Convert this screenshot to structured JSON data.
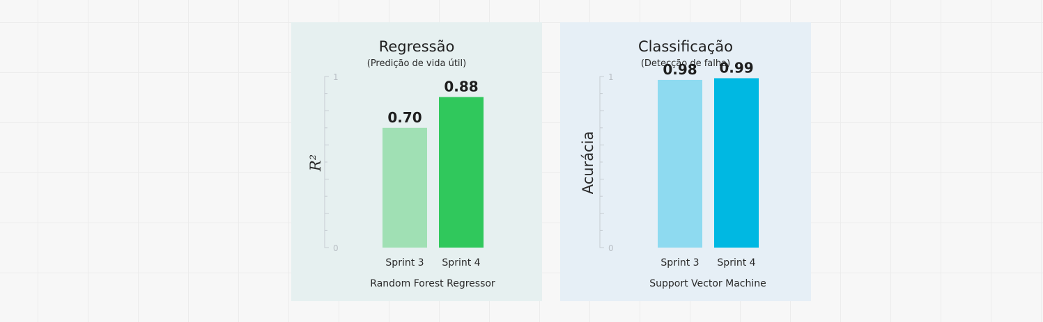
{
  "chart_data": [
    {
      "type": "bar",
      "title": "Regressão",
      "subtitle": "(Predição de vida útil)",
      "ylabel": "R²",
      "xlabel": "Random Forest Regressor",
      "categories": [
        "Sprint 3",
        "Sprint 4"
      ],
      "values": [
        0.7,
        0.88
      ],
      "value_labels": [
        "0.70",
        "0.88"
      ],
      "colors": [
        "#a0e0b4",
        "#30c85c"
      ],
      "ylim": [
        0,
        1
      ],
      "yticks": [
        "0",
        "1"
      ],
      "grid": false
    },
    {
      "type": "bar",
      "title": "Classificação",
      "subtitle": "(Detecção de falha)",
      "ylabel": "Acurácia",
      "xlabel": "Support Vector Machine",
      "categories": [
        "Sprint 3",
        "Sprint 4"
      ],
      "values": [
        0.98,
        0.99
      ],
      "value_labels": [
        "0.98",
        "0.99"
      ],
      "colors": [
        "#8edaf0",
        "#00b8e2"
      ],
      "ylim": [
        0,
        1
      ],
      "yticks": [
        "0",
        "1"
      ],
      "grid": false
    }
  ]
}
